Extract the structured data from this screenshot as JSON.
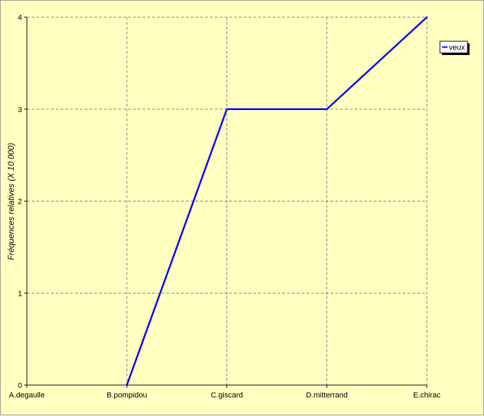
{
  "chart_data": {
    "type": "line",
    "categories": [
      "A.degaulle",
      "B.pompidou",
      "C.giscard",
      "D.mitterrand",
      "E.chirac"
    ],
    "series": [
      {
        "name": "veux",
        "values": [
          null,
          0,
          3,
          3,
          4
        ],
        "color": "#0000ff"
      }
    ],
    "ylabel": "Fréquences relatives (X 10 000)",
    "ylim": [
      0,
      4
    ],
    "yticks": [
      "0",
      "1",
      "2",
      "3",
      "4"
    ],
    "grid": true,
    "legend": "top-right",
    "colors": {
      "background": "#ffffc0",
      "line": "#0000ff",
      "grid": "#808080"
    }
  }
}
